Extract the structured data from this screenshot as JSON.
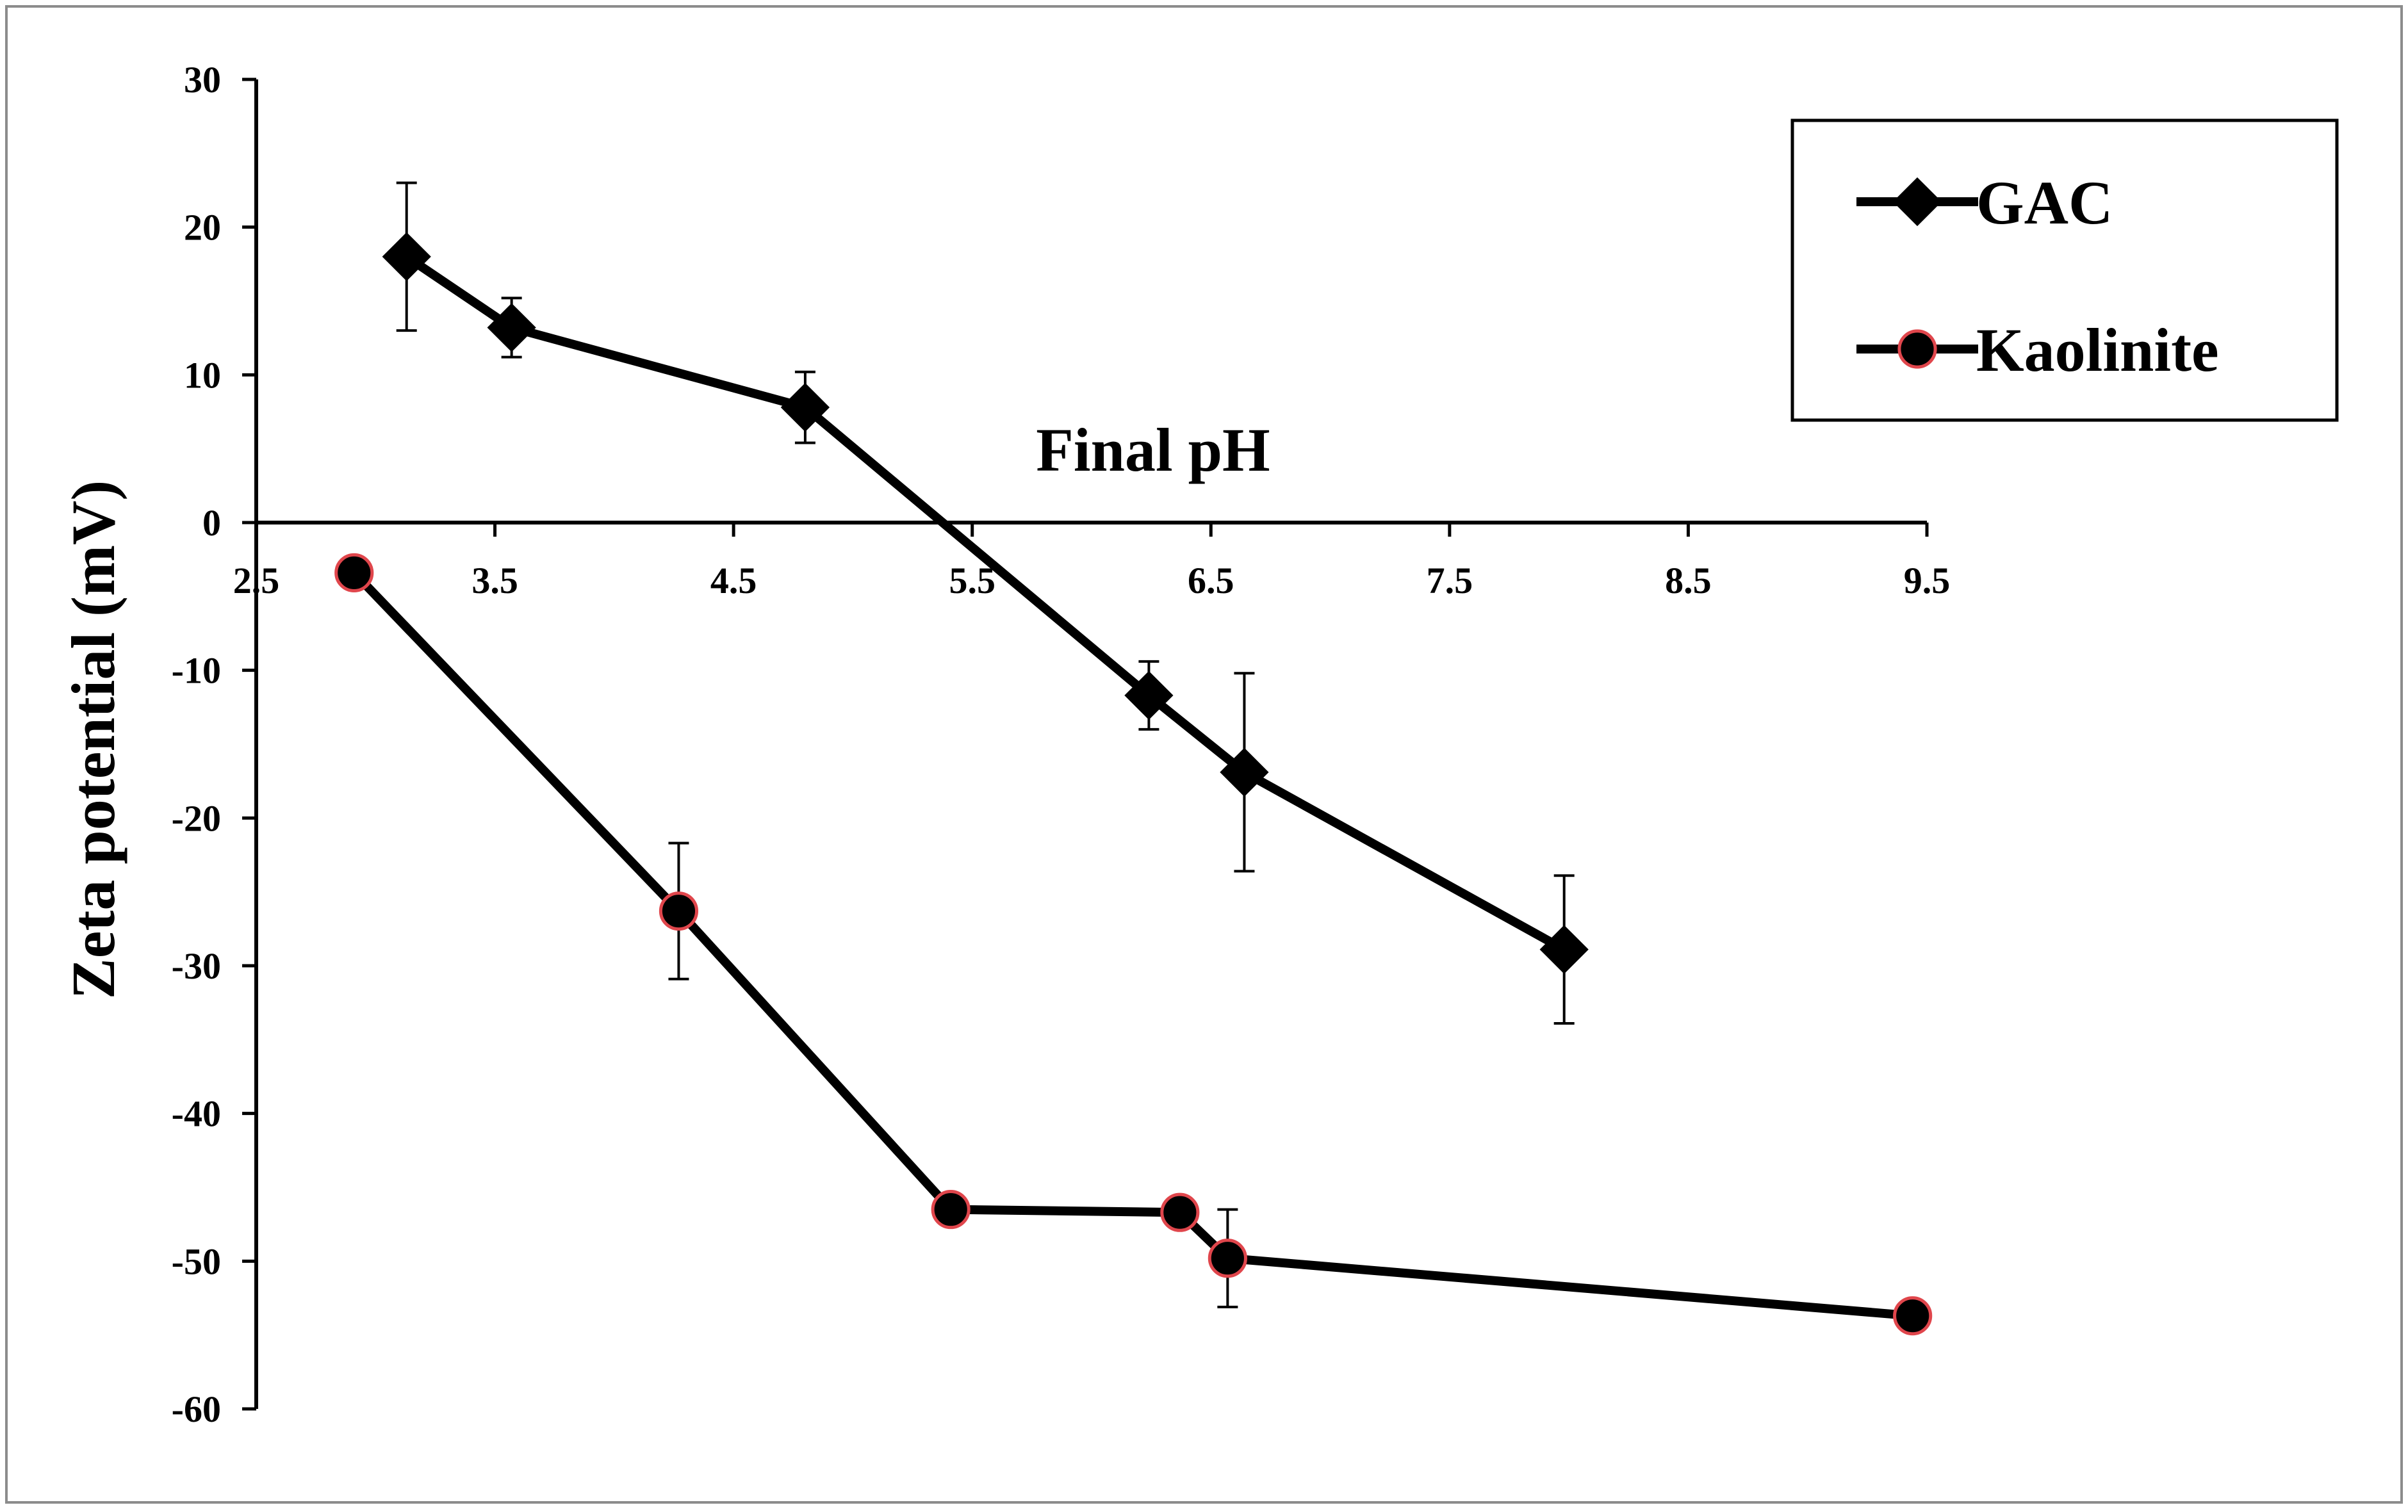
{
  "chart_data": {
    "type": "line",
    "xlabel": "Final pH",
    "ylabel": "Zeta potential  (mV)",
    "xlim": [
      2.5,
      9.5
    ],
    "ylim": [
      -60,
      30
    ],
    "x_ticks": [
      "2.5",
      "3.5",
      "4.5",
      "5.5",
      "6.5",
      "7.5",
      "8.5",
      "9.5"
    ],
    "y_ticks": [
      "30",
      "20",
      "10",
      "0",
      "-10",
      "-20",
      "-30",
      "-40",
      "-50",
      "-60"
    ],
    "grid": false,
    "legend_position": "top-right",
    "series": [
      {
        "name": "GAC",
        "marker": "diamond",
        "line_color": "#000000",
        "marker_fill": "#000000",
        "marker_edge": "#000000",
        "points": [
          {
            "x": 3.13,
            "y": 18.0,
            "err": 5.0
          },
          {
            "x": 3.57,
            "y": 13.2,
            "err": 2.0
          },
          {
            "x": 4.8,
            "y": 7.8,
            "err": 2.4
          },
          {
            "x": 6.24,
            "y": -11.7,
            "err": 2.3
          },
          {
            "x": 6.64,
            "y": -16.9,
            "err": 6.7
          },
          {
            "x": 7.98,
            "y": -28.9,
            "err": 5.0
          }
        ]
      },
      {
        "name": "Kaolinite",
        "marker": "circle",
        "line_color": "#000000",
        "marker_fill": "#000000",
        "marker_edge": "#e0464c",
        "points": [
          {
            "x": 2.91,
            "y": -3.4,
            "err": 0
          },
          {
            "x": 4.27,
            "y": -26.3,
            "err": 4.6
          },
          {
            "x": 5.41,
            "y": -46.5,
            "err": 0
          },
          {
            "x": 6.37,
            "y": -46.7,
            "err": 0
          },
          {
            "x": 6.57,
            "y": -49.8,
            "err": 3.3
          },
          {
            "x": 9.44,
            "y": -53.7,
            "err": 0
          }
        ]
      }
    ]
  }
}
